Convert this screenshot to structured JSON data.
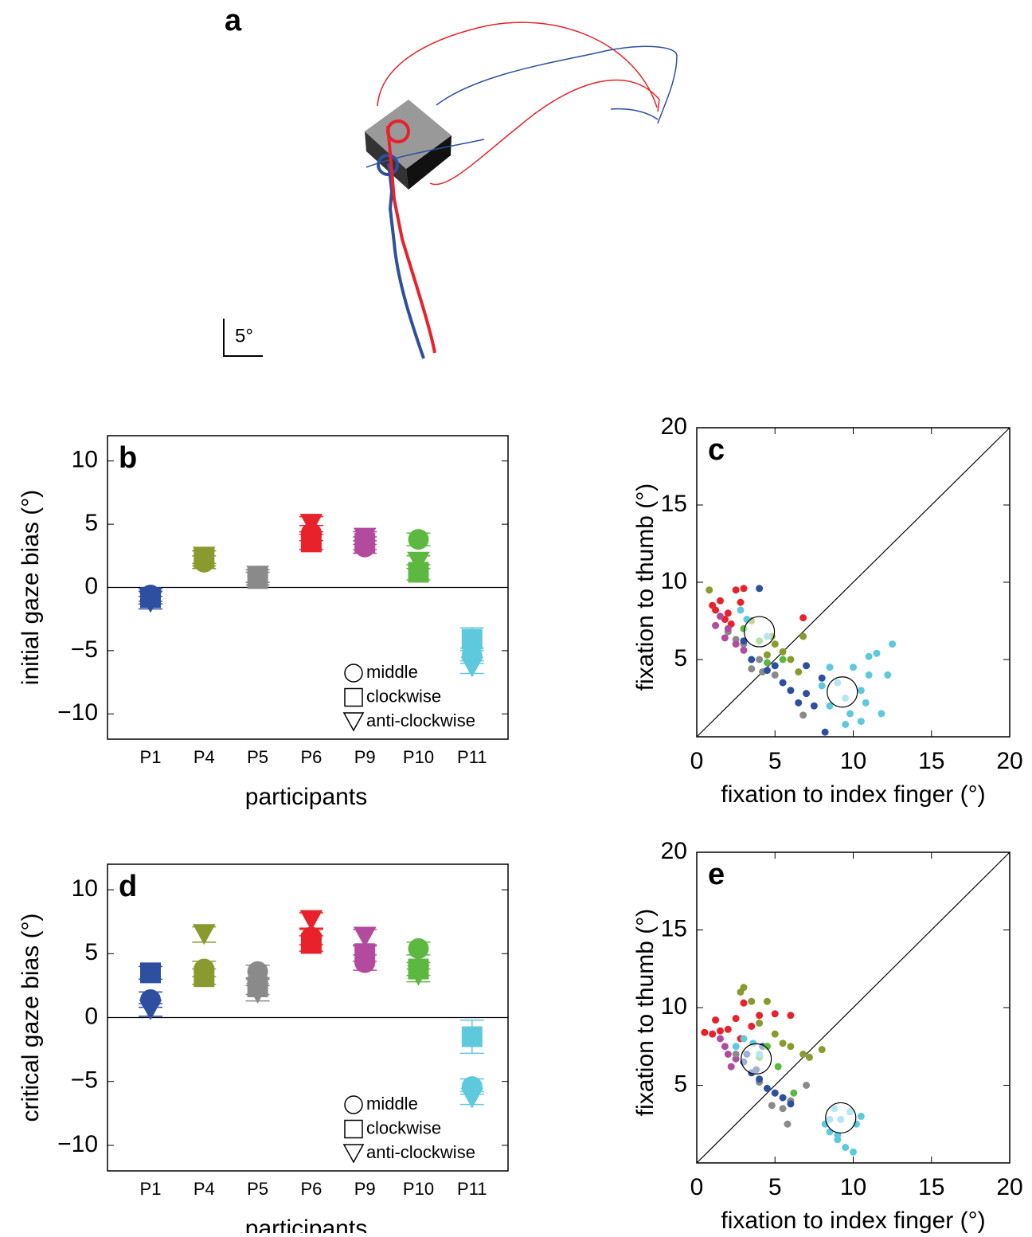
{
  "panel_a": {
    "label": "a",
    "scale_label": "5°"
  },
  "chart_data": [
    {
      "type": "errorbar",
      "label": "b",
      "ylabel": "initial gaze bias (°)",
      "xlabel": "participants",
      "categories": [
        "P1",
        "P4",
        "P5",
        "P6",
        "P9",
        "P10",
        "P11"
      ],
      "colors": [
        "#2e4fa0",
        "#8a9a2e",
        "#8a8a8a",
        "#e8212a",
        "#b24a9e",
        "#5cb840",
        "#5ec8dc"
      ],
      "ylim": [
        -12,
        12
      ],
      "yticks": [
        {
          "value": -10,
          "label": "−10"
        },
        {
          "value": -5,
          "label": "−5"
        },
        0,
        5,
        10
      ],
      "zero_line": true,
      "series": [
        {
          "name": "middle",
          "marker": "circle",
          "values": [
            -0.6,
            2.0,
            0.9,
            4.3,
            3.2,
            3.8,
            -5.4
          ],
          "errors": [
            0.5,
            0.5,
            0.5,
            0.6,
            0.5,
            0.5,
            0.6
          ]
        },
        {
          "name": "clockwise",
          "marker": "square",
          "values": [
            -0.8,
            2.3,
            0.7,
            3.6,
            3.5,
            1.2,
            -4.1
          ],
          "errors": [
            0.5,
            0.6,
            0.5,
            0.6,
            0.5,
            0.6,
            0.9
          ]
        },
        {
          "name": "anti-clockwise",
          "marker": "triangle",
          "values": [
            -1.2,
            2.4,
            0.9,
            5.0,
            3.9,
            2.0,
            -6.3
          ],
          "errors": [
            0.5,
            0.5,
            0.5,
            0.6,
            0.5,
            0.5,
            0.5
          ]
        }
      ]
    },
    {
      "type": "scatter",
      "label": "c",
      "xlabel": "fixation to index finger (°)",
      "ylabel": "fixation to thumb (°)",
      "xlim": [
        0,
        20
      ],
      "ylim": [
        0,
        20
      ],
      "xticks": [
        0,
        5,
        10,
        15,
        20
      ],
      "yticks": [
        5,
        10,
        15,
        20
      ],
      "diagonal": true,
      "series": [
        {
          "color": "#e8212a",
          "x": [
            1.2,
            1.5,
            2.0,
            1.8,
            2.5,
            3.0,
            1.0,
            2.2,
            6.8,
            2.8
          ],
          "y": [
            8.2,
            8.8,
            8.0,
            7.6,
            9.5,
            9.6,
            8.5,
            7.3,
            7.7,
            8.7
          ]
        },
        {
          "color": "#8a8a8a",
          "x": [
            2.0,
            3.0,
            4.0,
            3.5,
            5.0,
            6.8,
            4.2,
            2.5
          ],
          "y": [
            6.8,
            6.0,
            5.0,
            4.4,
            4.0,
            1.4,
            4.2,
            6.3
          ]
        },
        {
          "color": "#b24a9e",
          "x": [
            1.2,
            1.8,
            2.5,
            3.0,
            2.0,
            1.5
          ],
          "y": [
            7.2,
            6.4,
            6.0,
            5.6,
            7.0,
            7.8
          ]
        },
        {
          "color": "#8a9a2e",
          "x": [
            0.8,
            3.5,
            4.8,
            5.5,
            6.0,
            6.8,
            5.0,
            4.5,
            6.5
          ],
          "y": [
            9.5,
            7.5,
            6.5,
            5.5,
            5.0,
            6.5,
            6.0,
            5.3,
            4.2
          ]
        },
        {
          "color": "#2e4fa0",
          "x": [
            4.0,
            3.5,
            4.5,
            5.5,
            6.0,
            7.0,
            7.5,
            8.0,
            8.2,
            6.5,
            5.0,
            3.0,
            7.0
          ],
          "y": [
            9.6,
            5.0,
            4.3,
            3.5,
            3.0,
            2.8,
            2.0,
            3.8,
            0.3,
            2.2,
            4.6,
            6.2,
            4.6
          ]
        },
        {
          "color": "#5cb840",
          "x": [
            3.0,
            4.0,
            5.5,
            4.5
          ],
          "y": [
            7.0,
            6.2,
            5.0,
            4.8
          ]
        },
        {
          "color": "#5ec8dc",
          "x": [
            2.8,
            3.2,
            4.5,
            9.0,
            10.0,
            11.0,
            12.5,
            12.2,
            11.8,
            10.5,
            9.5,
            8.5,
            8.0,
            9.5,
            10.5,
            11.0,
            8.5,
            9.8,
            10.8,
            11.5
          ],
          "y": [
            8.2,
            7.6,
            6.5,
            3.5,
            4.5,
            5.2,
            6.0,
            4.0,
            1.5,
            1.0,
            0.8,
            2.0,
            3.3,
            2.5,
            3.0,
            4.0,
            4.5,
            1.5,
            2.2,
            5.4
          ]
        }
      ],
      "means": [
        {
          "x": 4.0,
          "y": 6.8
        },
        {
          "x": 9.3,
          "y": 2.9
        }
      ]
    },
    {
      "type": "errorbar",
      "label": "d",
      "ylabel": "critical gaze bias (°)",
      "xlabel": "participants",
      "categories": [
        "P1",
        "P4",
        "P5",
        "P6",
        "P9",
        "P10",
        "P11"
      ],
      "colors": [
        "#2e4fa0",
        "#8a9a2e",
        "#8a8a8a",
        "#e8212a",
        "#b24a9e",
        "#5cb840",
        "#5ec8dc"
      ],
      "ylim": [
        -12,
        12
      ],
      "yticks": [
        {
          "value": -10,
          "label": "−10"
        },
        {
          "value": -5,
          "label": "−5"
        },
        0,
        5,
        10
      ],
      "zero_line": true,
      "series": [
        {
          "name": "middle",
          "marker": "circle",
          "values": [
            1.4,
            3.8,
            3.6,
            6.3,
            4.3,
            5.4,
            -5.4
          ],
          "errors": [
            0.6,
            0.6,
            0.5,
            0.6,
            0.6,
            0.5,
            0.6
          ]
        },
        {
          "name": "clockwise",
          "marker": "square",
          "values": [
            3.5,
            3.2,
            2.4,
            5.8,
            5.0,
            3.8,
            -1.5
          ],
          "errors": [
            0.5,
            0.6,
            0.6,
            0.6,
            0.6,
            0.5,
            1.3
          ]
        },
        {
          "name": "anti-clockwise",
          "marker": "triangle",
          "values": [
            0.6,
            6.5,
            1.9,
            7.6,
            6.3,
            3.3,
            -6.3
          ],
          "errors": [
            0.5,
            0.6,
            0.6,
            0.6,
            0.6,
            0.5,
            0.5
          ]
        }
      ]
    },
    {
      "type": "scatter",
      "label": "e",
      "xlabel": "fixation to index finger (°)",
      "ylabel": "fixation to thumb (°)",
      "xlim": [
        0,
        20
      ],
      "ylim": [
        0,
        20
      ],
      "xticks": [
        0,
        5,
        10,
        15,
        20
      ],
      "yticks": [
        5,
        10,
        15,
        20
      ],
      "diagonal": true,
      "series": [
        {
          "color": "#e8212a",
          "x": [
            0.5,
            1.0,
            1.5,
            2.0,
            2.5,
            1.2,
            3.0,
            4.0,
            5.0,
            6.0,
            2.8,
            3.5
          ],
          "y": [
            8.4,
            8.3,
            8.5,
            8.6,
            9.3,
            9.2,
            10.3,
            9.5,
            9.6,
            9.5,
            8.0,
            8.8
          ]
        },
        {
          "color": "#8a9a2e",
          "x": [
            3.0,
            2.8,
            3.5,
            4.5,
            4.0,
            5.0,
            4.5,
            6.8,
            7.2,
            8.0,
            6.0,
            5.5
          ],
          "y": [
            11.3,
            11.0,
            10.4,
            10.4,
            9.0,
            8.3,
            7.5,
            7.0,
            6.8,
            7.3,
            7.5,
            7.7
          ]
        },
        {
          "color": "#b24a9e",
          "x": [
            1.5,
            2.0,
            2.5,
            1.8,
            2.2
          ],
          "y": [
            8.0,
            7.0,
            6.7,
            7.5,
            6.2
          ]
        },
        {
          "color": "#8a8a8a",
          "x": [
            2.5,
            3.0,
            4.0,
            5.0,
            5.5,
            5.8,
            7.0,
            6.0,
            4.8
          ],
          "y": [
            7.0,
            6.5,
            5.2,
            4.5,
            3.5,
            2.5,
            5.0,
            4.0,
            3.7
          ]
        },
        {
          "color": "#2e4fa0",
          "x": [
            3.0,
            3.5,
            4.0,
            4.5,
            5.0,
            5.5,
            6.0,
            3.8,
            4.2,
            3.2
          ],
          "y": [
            6.5,
            5.8,
            5.4,
            4.8,
            4.5,
            4.2,
            3.8,
            6.0,
            7.5,
            7.0
          ]
        },
        {
          "color": "#5cb840",
          "x": [
            4.5,
            5.2,
            6.2,
            4.0
          ],
          "y": [
            7.5,
            6.2,
            4.5,
            6.8
          ]
        },
        {
          "color": "#5ec8dc",
          "x": [
            2.5,
            3.0,
            3.6,
            4.0,
            8.2,
            8.5,
            9.0,
            9.5,
            10.0,
            8.8,
            9.8,
            10.5,
            10.2,
            9.2,
            8.5,
            9.0
          ],
          "y": [
            7.5,
            8.0,
            7.7,
            7.0,
            2.5,
            2.0,
            1.5,
            1.0,
            0.7,
            3.5,
            3.3,
            3.0,
            2.5,
            2.8,
            2.8,
            1.8
          ]
        }
      ],
      "means": [
        {
          "x": 3.8,
          "y": 6.7
        },
        {
          "x": 9.2,
          "y": 2.9
        }
      ]
    }
  ]
}
